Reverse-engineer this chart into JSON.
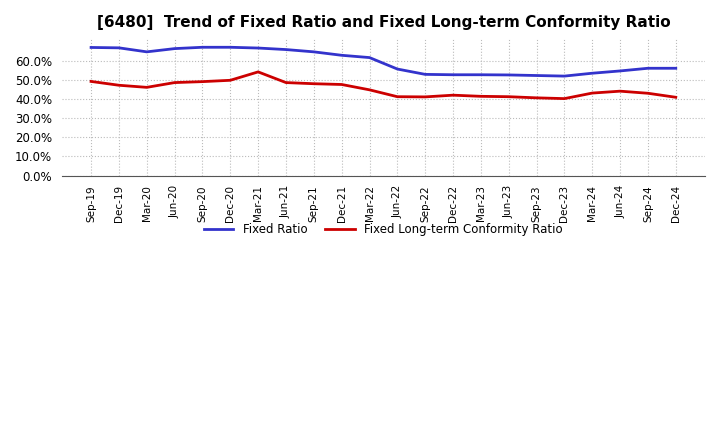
{
  "title": "[6480]  Trend of Fixed Ratio and Fixed Long-term Conformity Ratio",
  "x_labels": [
    "Sep-19",
    "Dec-19",
    "Mar-20",
    "Jun-20",
    "Sep-20",
    "Dec-20",
    "Mar-21",
    "Jun-21",
    "Sep-21",
    "Dec-21",
    "Mar-22",
    "Jun-22",
    "Sep-22",
    "Dec-22",
    "Mar-23",
    "Jun-23",
    "Sep-23",
    "Dec-23",
    "Mar-24",
    "Jun-24",
    "Sep-24",
    "Dec-24"
  ],
  "fixed_ratio": [
    0.671,
    0.669,
    0.648,
    0.665,
    0.672,
    0.672,
    0.668,
    0.66,
    0.648,
    0.63,
    0.618,
    0.558,
    0.53,
    0.528,
    0.528,
    0.527,
    0.524,
    0.521,
    0.536,
    0.548,
    0.562,
    0.562
  ],
  "fixed_lt_ratio": [
    0.493,
    0.473,
    0.462,
    0.487,
    0.492,
    0.499,
    0.543,
    0.487,
    0.481,
    0.477,
    0.449,
    0.413,
    0.412,
    0.421,
    0.415,
    0.413,
    0.407,
    0.403,
    0.432,
    0.442,
    0.431,
    0.41
  ],
  "fixed_ratio_color": "#3333cc",
  "fixed_lt_ratio_color": "#cc0000",
  "ylim": [
    0.0,
    0.72
  ],
  "yticks": [
    0.0,
    0.1,
    0.2,
    0.3,
    0.4,
    0.5,
    0.6
  ],
  "background_color": "#ffffff",
  "grid_color": "#bbbbbb",
  "title_fontsize": 11,
  "legend_fixed": "Fixed Ratio",
  "legend_fixed_lt": "Fixed Long-term Conformity Ratio"
}
